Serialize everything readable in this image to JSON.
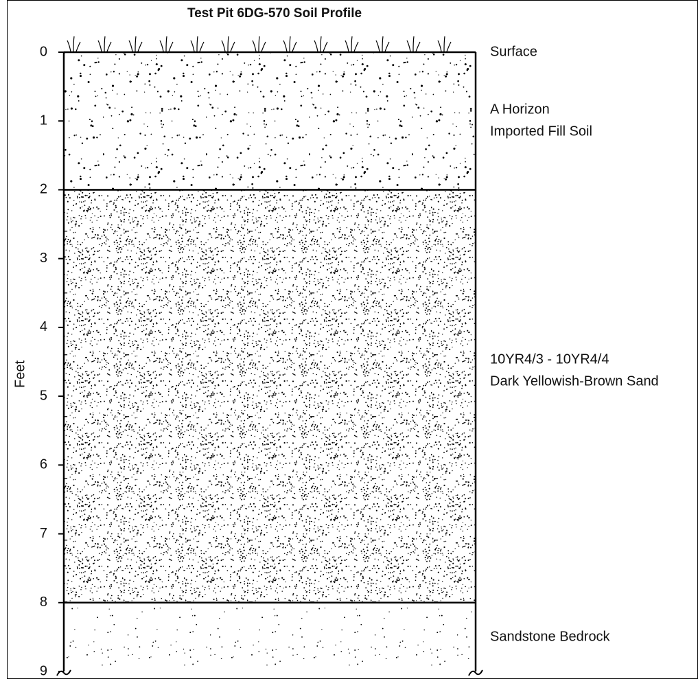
{
  "title": "Test Pit 6DG-570 Soil Profile",
  "axis_label": "Feet",
  "ylim": [
    0,
    9
  ],
  "ticks": [
    0,
    1,
    2,
    3,
    4,
    5,
    6,
    7,
    8,
    9
  ],
  "surface": {
    "depth": 0,
    "label": "Surface"
  },
  "layers": [
    {
      "top": 0,
      "bottom": 2,
      "label_lines": [
        "A Horizon",
        "Imported Fill Soil"
      ]
    },
    {
      "top": 2,
      "bottom": 8,
      "label_lines": [
        "10YR4/3 - 10YR4/4",
        "Dark Yellowish-Brown Sand"
      ]
    },
    {
      "top": 8,
      "bottom": 9,
      "label_lines": [
        "Sandstone Bedrock"
      ]
    }
  ]
}
